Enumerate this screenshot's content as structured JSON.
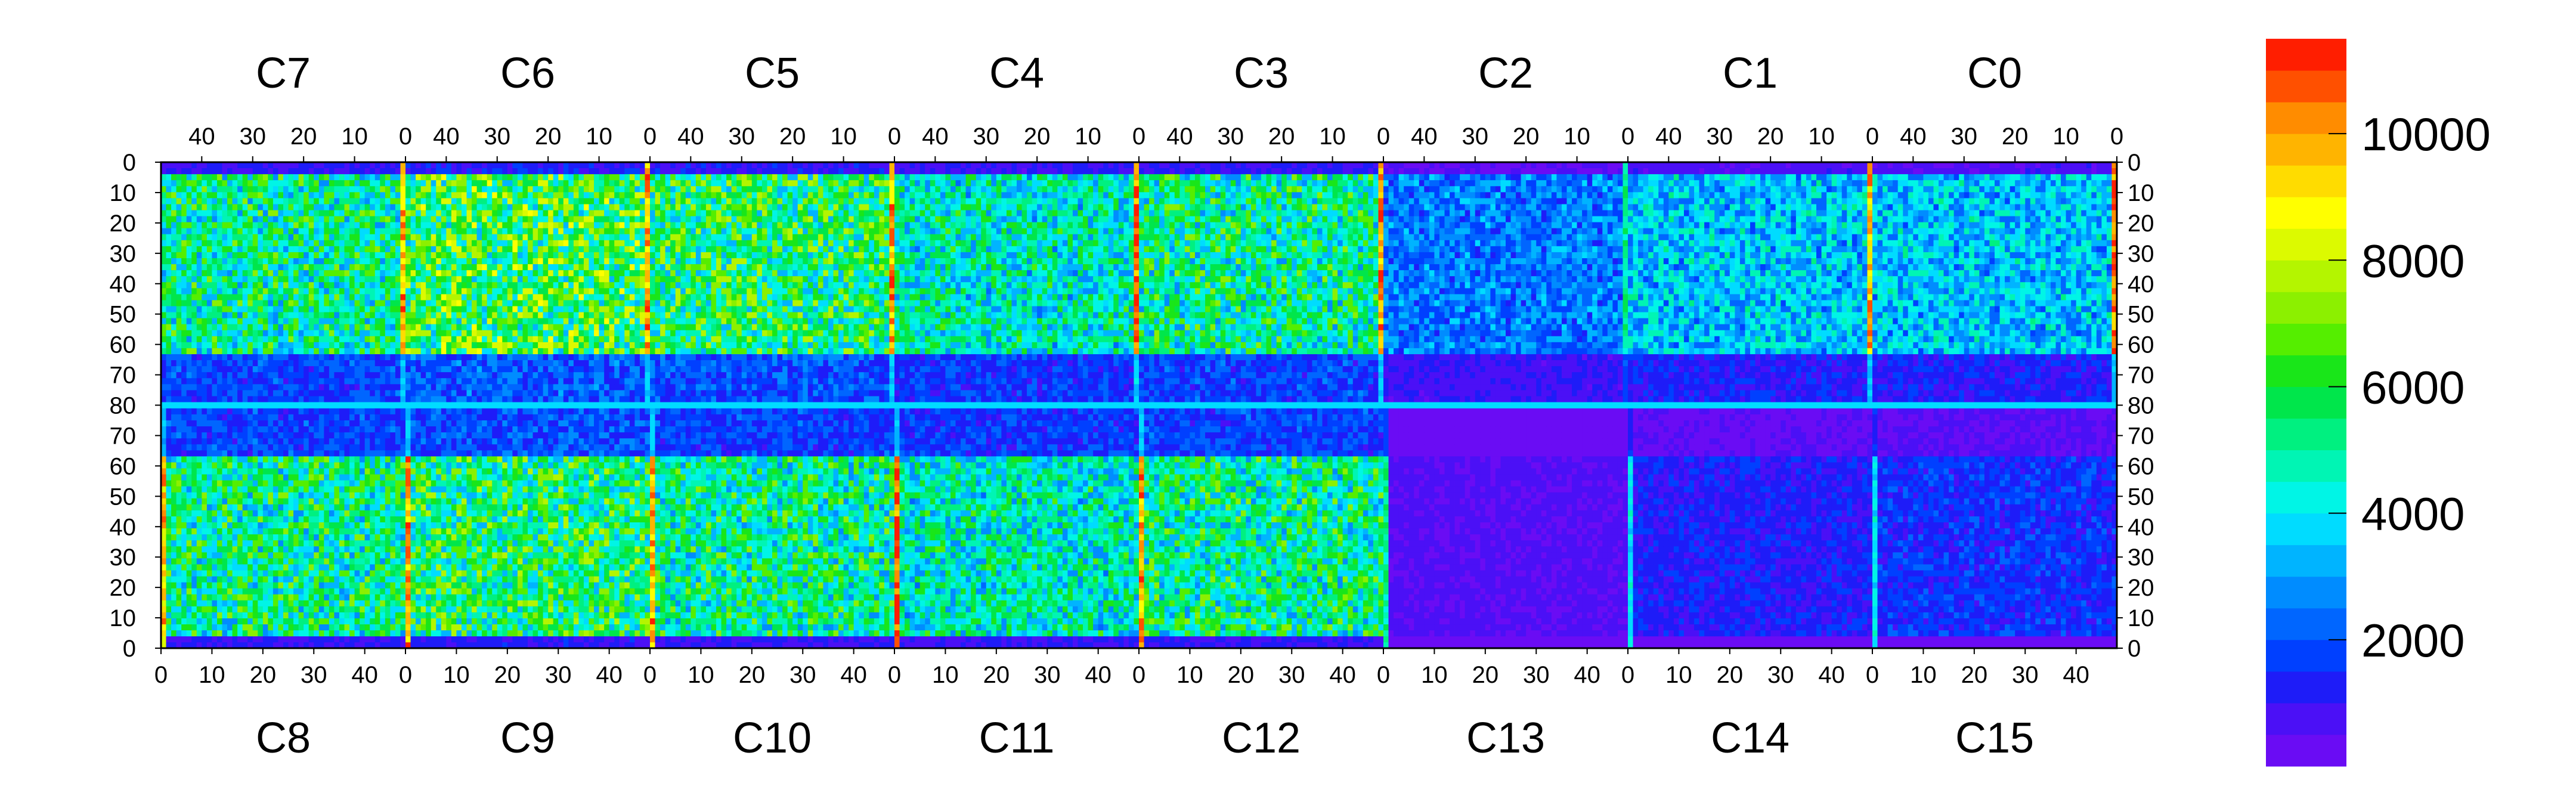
{
  "chart_data": {
    "type": "heatmap",
    "title": "",
    "xlabel": "",
    "ylabel": "",
    "top_chips": [
      "C7",
      "C6",
      "C5",
      "C4",
      "C3",
      "C2",
      "C1",
      "C0"
    ],
    "bottom_chips": [
      "C8",
      "C9",
      "C10",
      "C11",
      "C12",
      "C13",
      "C14",
      "C15"
    ],
    "top_x_tick_labels": [
      "40",
      "30",
      "20",
      "10",
      "0"
    ],
    "bottom_x_tick_labels": [
      "0",
      "10",
      "20",
      "30",
      "40"
    ],
    "y_tick_labels": [
      "0",
      "10",
      "20",
      "30",
      "40",
      "50",
      "60",
      "70",
      "80",
      "70",
      "60",
      "50",
      "40",
      "30",
      "20",
      "10",
      "0"
    ],
    "z_range": [
      0,
      11500
    ],
    "colorbar_ticks": [
      2000,
      4000,
      6000,
      8000,
      10000
    ],
    "colorbar_tick_labels": [
      "2000",
      "4000",
      "6000",
      "8000",
      "10000"
    ],
    "colormap": [
      "#6a0cf4",
      "#4b10f6",
      "#1e1cf8",
      "#0040ff",
      "#0066ff",
      "#008cff",
      "#00b4ff",
      "#00dcff",
      "#00f5e6",
      "#00f5b4",
      "#00f080",
      "#00e64b",
      "#19e619",
      "#55ee00",
      "#8cf000",
      "#b4f500",
      "#dcfa00",
      "#ffff00",
      "#ffdc00",
      "#ffb400",
      "#ff8c00",
      "#ff5000",
      "#ff1e00"
    ],
    "layout_note": "16 chips (C0-C15) of 48 columns each; top row C7..C0 rows 0-80 top-down, bottom row C8..C15 rows 80-0",
    "chip_summary": [
      {
        "chip": "C7",
        "edge_column_level": 10000,
        "bulk_level": 5000
      },
      {
        "chip": "C6",
        "edge_column_level": 10000,
        "bulk_level": 6000
      },
      {
        "chip": "C5",
        "edge_column_level": 10000,
        "bulk_level": 5500
      },
      {
        "chip": "C4",
        "edge_column_level": 10500,
        "bulk_level": 4500
      },
      {
        "chip": "C3",
        "edge_column_level": 10000,
        "bulk_level": 5000
      },
      {
        "chip": "C2",
        "edge_column_level": 5000,
        "bulk_level": 2500
      },
      {
        "chip": "C1",
        "edge_column_level": 9500,
        "bulk_level": 3500
      },
      {
        "chip": "C0",
        "edge_column_level": 10500,
        "bulk_level": 3500
      },
      {
        "chip": "C8",
        "edge_column_level": 9500,
        "bulk_level": 5000
      },
      {
        "chip": "C9",
        "edge_column_level": 10000,
        "bulk_level": 5500
      },
      {
        "chip": "C10",
        "edge_column_level": 10000,
        "bulk_level": 5000
      },
      {
        "chip": "C11",
        "edge_column_level": 10500,
        "bulk_level": 4500
      },
      {
        "chip": "C12",
        "edge_column_level": 10000,
        "bulk_level": 5000
      },
      {
        "chip": "C13",
        "edge_column_level": 5000,
        "bulk_level": 600
      },
      {
        "chip": "C14",
        "edge_column_level": 4000,
        "bulk_level": 1200
      },
      {
        "chip": "C15",
        "edge_column_level": 4000,
        "bulk_level": 1500
      }
    ]
  }
}
